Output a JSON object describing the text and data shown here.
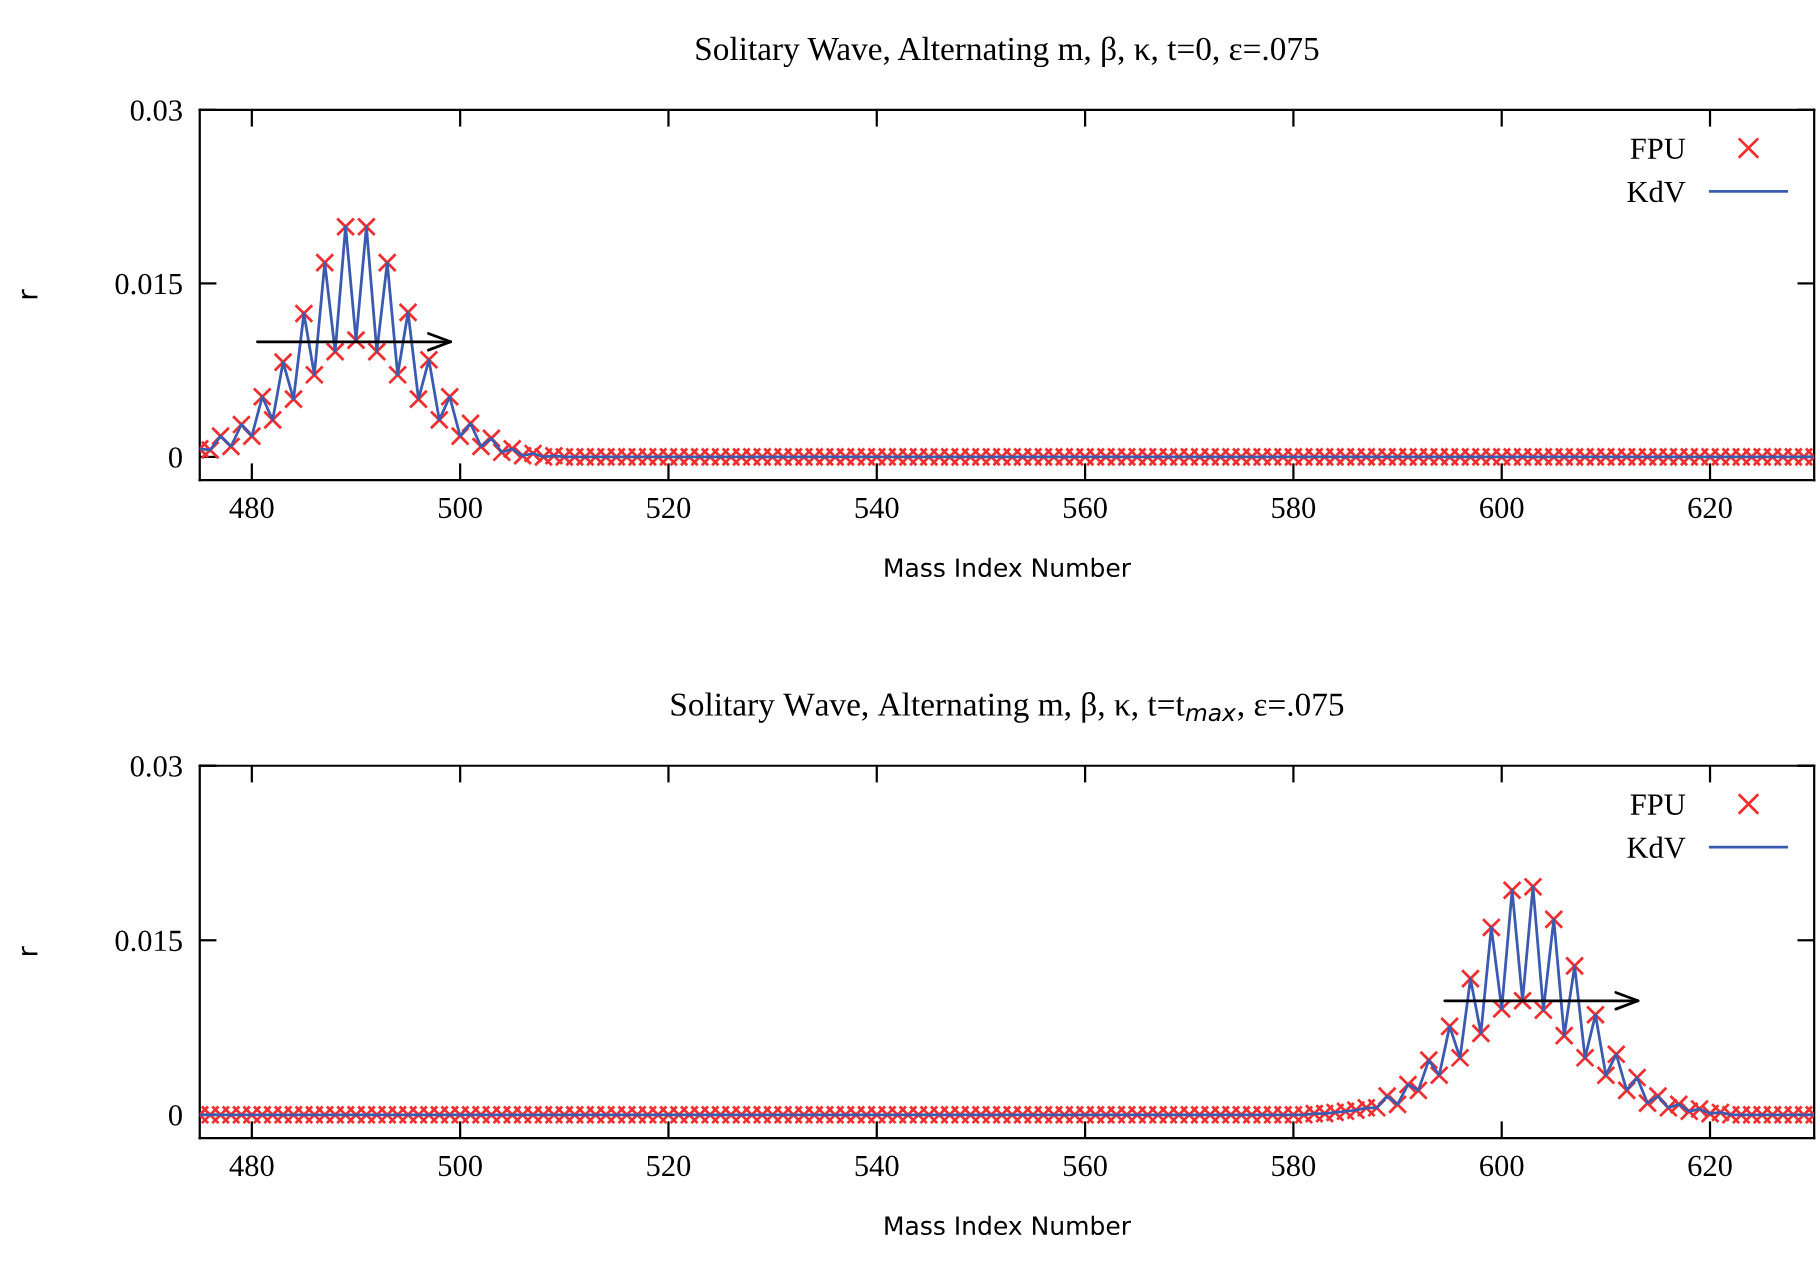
{
  "chart_data": [
    {
      "type": "line",
      "title": "Solitary Wave, Alternating m, β, κ, t=0, ε=.075",
      "xlabel": "Mass Index Number",
      "ylabel": "r",
      "xlim": [
        475,
        630
      ],
      "xticks": [
        480,
        500,
        520,
        540,
        560,
        580,
        600,
        620
      ],
      "ylim": [
        -0.002,
        0.03
      ],
      "yticks": [
        0,
        0.015,
        0.03
      ],
      "grid": false,
      "legend": "top right",
      "x": [
        475,
        476,
        477,
        478,
        479,
        480,
        481,
        482,
        483,
        484,
        485,
        486,
        487,
        488,
        489,
        490,
        491,
        492,
        493,
        494,
        495,
        496,
        497,
        498,
        499,
        500,
        501,
        502,
        503,
        504,
        505,
        506,
        507,
        508,
        509,
        510,
        511,
        512,
        513,
        514,
        515,
        516,
        517,
        518,
        519,
        520,
        521,
        522,
        523,
        524,
        525,
        526,
        527,
        528,
        529,
        530,
        531,
        532,
        533,
        534,
        535,
        536,
        537,
        538,
        539,
        540,
        541,
        542,
        543,
        544,
        545,
        546,
        547,
        548,
        549,
        550,
        551,
        552,
        553,
        554,
        555,
        556,
        557,
        558,
        559,
        560,
        561,
        562,
        563,
        564,
        565,
        566,
        567,
        568,
        569,
        570,
        571,
        572,
        573,
        574,
        575,
        576,
        577,
        578,
        579,
        580,
        581,
        582,
        583,
        584,
        585,
        586,
        587,
        588,
        589,
        590,
        591,
        592,
        593,
        594,
        595,
        596,
        597,
        598,
        599,
        600,
        601,
        602,
        603,
        604,
        605,
        606,
        607,
        608,
        609,
        610,
        611,
        612,
        613,
        614,
        615,
        616,
        617,
        618,
        619,
        620,
        621,
        622,
        623,
        624,
        625,
        626,
        627,
        628,
        629,
        630
      ],
      "series": [
        {
          "name": "FPU",
          "type": "scatter",
          "marker": "cross",
          "color": "#f03030",
          "values": [
            0.0007,
            0.0006,
            0.0018,
            0.0009,
            0.0028,
            0.0018,
            0.0052,
            0.0032,
            0.0082,
            0.005,
            0.0124,
            0.0071,
            0.0168,
            0.0091,
            0.0199,
            0.0101,
            0.0199,
            0.0091,
            0.0168,
            0.0071,
            0.0125,
            0.005,
            0.0084,
            0.0032,
            0.0052,
            0.0018,
            0.0029,
            0.0009,
            0.0016,
            0.0004,
            0.0007,
            0.0001,
            0.0003,
            0,
            0.0001,
            0,
            0,
            0,
            0,
            0,
            0,
            0,
            0,
            0,
            0,
            0,
            0,
            0,
            0,
            0,
            0,
            0,
            0,
            0,
            0,
            0,
            0,
            0,
            0,
            0,
            0,
            0,
            0,
            0,
            0,
            0,
            0,
            0,
            0,
            0,
            0,
            0,
            0,
            0,
            0,
            0,
            0,
            0,
            0,
            0,
            0,
            0,
            0,
            0,
            0,
            0,
            0,
            0,
            0,
            0,
            0,
            0,
            0,
            0,
            0,
            0,
            0,
            0,
            0,
            0,
            0,
            0,
            0,
            0,
            0,
            0,
            0,
            0,
            0,
            0,
            0,
            0,
            0,
            0,
            0,
            0,
            0,
            0,
            0,
            0,
            0,
            0,
            0,
            0,
            0,
            0,
            0,
            0,
            0,
            0,
            0,
            0,
            0,
            0,
            0,
            0,
            0,
            0,
            0,
            0,
            0,
            0,
            0,
            0,
            0,
            0,
            0,
            0,
            0,
            0,
            0,
            0,
            0,
            0,
            0,
            0
          ]
        },
        {
          "name": "KdV",
          "marker": "none",
          "line_style": "solid",
          "color": "#3a5bb0",
          "values": [
            0.0007,
            0.0006,
            0.0018,
            0.0009,
            0.0028,
            0.0018,
            0.0052,
            0.0032,
            0.0082,
            0.005,
            0.0124,
            0.0071,
            0.0168,
            0.0091,
            0.0199,
            0.0101,
            0.0199,
            0.0091,
            0.0168,
            0.0071,
            0.0125,
            0.005,
            0.0084,
            0.0032,
            0.0052,
            0.0018,
            0.0029,
            0.0009,
            0.0016,
            0.0004,
            0.0007,
            0.0001,
            0.0003,
            0,
            0.0001,
            0,
            0,
            0,
            0,
            0,
            0,
            0,
            0,
            0,
            0,
            0,
            0,
            0,
            0,
            0,
            0,
            0,
            0,
            0,
            0,
            0,
            0,
            0,
            0,
            0,
            0,
            0,
            0,
            0,
            0,
            0,
            0,
            0,
            0,
            0,
            0,
            0,
            0,
            0,
            0,
            0,
            0,
            0,
            0,
            0,
            0,
            0,
            0,
            0,
            0,
            0,
            0,
            0,
            0,
            0,
            0,
            0,
            0,
            0,
            0,
            0,
            0,
            0,
            0,
            0,
            0,
            0,
            0,
            0,
            0,
            0,
            0,
            0,
            0,
            0,
            0,
            0,
            0,
            0,
            0,
            0,
            0,
            0,
            0,
            0,
            0,
            0,
            0,
            0,
            0,
            0,
            0,
            0,
            0,
            0,
            0,
            0,
            0,
            0,
            0,
            0,
            0,
            0,
            0,
            0,
            0,
            0,
            0,
            0,
            0,
            0,
            0,
            0,
            0,
            0,
            0,
            0,
            0,
            0,
            0,
            0
          ]
        }
      ]
    },
    {
      "type": "line",
      "title": "Solitary Wave, Alternating m, β, κ, t=t$_{max}$, ε=.075",
      "xlabel": "Mass Index Number",
      "ylabel": "r",
      "xlim": [
        475,
        630
      ],
      "xticks": [
        480,
        500,
        520,
        540,
        560,
        580,
        600,
        620
      ],
      "ylim": [
        -0.002,
        0.03
      ],
      "yticks": [
        0,
        0.015,
        0.03
      ],
      "grid": false,
      "legend": "top right",
      "x": [
        475,
        476,
        477,
        478,
        479,
        480,
        481,
        482,
        483,
        484,
        485,
        486,
        487,
        488,
        489,
        490,
        491,
        492,
        493,
        494,
        495,
        496,
        497,
        498,
        499,
        500,
        501,
        502,
        503,
        504,
        505,
        506,
        507,
        508,
        509,
        510,
        511,
        512,
        513,
        514,
        515,
        516,
        517,
        518,
        519,
        520,
        521,
        522,
        523,
        524,
        525,
        526,
        527,
        528,
        529,
        530,
        531,
        532,
        533,
        534,
        535,
        536,
        537,
        538,
        539,
        540,
        541,
        542,
        543,
        544,
        545,
        546,
        547,
        548,
        549,
        550,
        551,
        552,
        553,
        554,
        555,
        556,
        557,
        558,
        559,
        560,
        561,
        562,
        563,
        564,
        565,
        566,
        567,
        568,
        569,
        570,
        571,
        572,
        573,
        574,
        575,
        576,
        577,
        578,
        579,
        580,
        581,
        582,
        583,
        584,
        585,
        586,
        587,
        588,
        589,
        590,
        591,
        592,
        593,
        594,
        595,
        596,
        597,
        598,
        599,
        600,
        601,
        602,
        603,
        604,
        605,
        606,
        607,
        608,
        609,
        610,
        611,
        612,
        613,
        614,
        615,
        616,
        617,
        618,
        619,
        620,
        621,
        622,
        623,
        624,
        625,
        626,
        627,
        628,
        629,
        630
      ],
      "series": [
        {
          "name": "FPU",
          "type": "scatter",
          "marker": "cross",
          "color": "#f03030",
          "values": [
            0,
            0,
            0,
            0,
            0,
            0,
            0,
            0,
            0,
            0,
            0,
            0,
            0,
            0,
            0,
            0,
            0,
            0,
            0,
            0,
            0,
            0,
            0,
            0,
            0,
            0,
            0,
            0,
            0,
            0,
            0,
            0,
            0,
            0,
            0,
            0,
            0,
            0,
            0,
            0,
            0,
            0,
            0,
            0,
            0,
            0,
            0,
            0,
            0,
            0,
            0,
            0,
            0,
            0,
            0,
            0,
            0,
            0,
            0,
            0,
            0,
            0,
            0,
            0,
            0,
            0,
            0,
            0,
            0,
            0,
            0,
            0,
            0,
            0,
            0,
            0,
            0,
            0,
            0,
            0,
            0,
            0,
            0,
            0,
            0,
            0,
            0,
            0,
            0,
            0,
            0,
            0,
            0,
            0,
            0,
            0,
            0,
            0,
            0,
            0,
            0,
            0,
            0,
            0,
            0,
            0,
            0,
            0.0001,
            0.0001,
            0.0002,
            0.0003,
            0.0004,
            0.0006,
            0.0006,
            0.0016,
            0.0009,
            0.0026,
            0.0021,
            0.0047,
            0.0034,
            0.0076,
            0.0049,
            0.0117,
            0.007,
            0.0161,
            0.0091,
            0.0193,
            0.0098,
            0.0196,
            0.009,
            0.0168,
            0.0068,
            0.0128,
            0.0049,
            0.0086,
            0.0034,
            0.0052,
            0.0021,
            0.0032,
            0.001,
            0.0016,
            0.0006,
            0.0009,
            0.0003,
            0.0005,
            0.0001,
            0.0002,
            0,
            0,
            0,
            0,
            0,
            0,
            0,
            0,
            0
          ]
        },
        {
          "name": "KdV",
          "marker": "none",
          "line_style": "solid",
          "color": "#3a5bb0",
          "values": [
            0,
            0,
            0,
            0,
            0,
            0,
            0,
            0,
            0,
            0,
            0,
            0,
            0,
            0,
            0,
            0,
            0,
            0,
            0,
            0,
            0,
            0,
            0,
            0,
            0,
            0,
            0,
            0,
            0,
            0,
            0,
            0,
            0,
            0,
            0,
            0,
            0,
            0,
            0,
            0,
            0,
            0,
            0,
            0,
            0,
            0,
            0,
            0,
            0,
            0,
            0,
            0,
            0,
            0,
            0,
            0,
            0,
            0,
            0,
            0,
            0,
            0,
            0,
            0,
            0,
            0,
            0,
            0,
            0,
            0,
            0,
            0,
            0,
            0,
            0,
            0,
            0,
            0,
            0,
            0,
            0,
            0,
            0,
            0,
            0,
            0,
            0,
            0,
            0,
            0,
            0,
            0,
            0,
            0,
            0,
            0,
            0,
            0,
            0,
            0,
            0,
            0,
            0,
            0,
            0,
            0,
            0,
            0.0001,
            0.0001,
            0.0002,
            0.0003,
            0.0004,
            0.0006,
            0.0006,
            0.0016,
            0.0009,
            0.0026,
            0.0021,
            0.0047,
            0.0034,
            0.0076,
            0.0049,
            0.0117,
            0.007,
            0.0161,
            0.0091,
            0.0193,
            0.0098,
            0.0196,
            0.009,
            0.0168,
            0.0068,
            0.0128,
            0.0049,
            0.0086,
            0.0034,
            0.0052,
            0.0021,
            0.0032,
            0.001,
            0.0016,
            0.0006,
            0.0009,
            0.0003,
            0.0005,
            0.0001,
            0.0002,
            0,
            0,
            0,
            0,
            0,
            0,
            0,
            0,
            0
          ]
        }
      ]
    }
  ]
}
